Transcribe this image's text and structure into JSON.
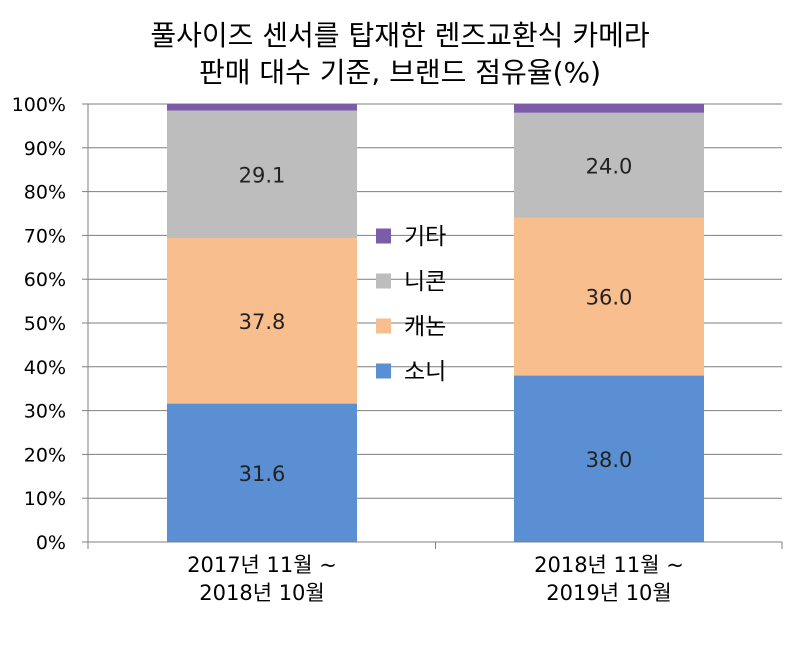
{
  "chart_data": {
    "type": "bar",
    "stacked": true,
    "percent": true,
    "title": [
      "풀사이즈 센서를 탑재한 렌즈교환식 카메라",
      "판매 대수 기준, 브랜드 점유율(%)"
    ],
    "categories": [
      [
        "2017년 11월 ~",
        "2018년 10월"
      ],
      [
        "2018년 11월 ~",
        "2019년 10월"
      ]
    ],
    "series": [
      {
        "name": "소니",
        "values": [
          31.6,
          38.0
        ],
        "labels": [
          "31.6",
          "38.0"
        ],
        "color": "#5B8FD4"
      },
      {
        "name": "캐논",
        "values": [
          37.8,
          36.0
        ],
        "labels": [
          "37.8",
          "36.0"
        ],
        "color": "#F8BE8E"
      },
      {
        "name": "니콘",
        "values": [
          29.1,
          24.0
        ],
        "labels": [
          "29.1",
          "24.0"
        ],
        "color": "#BDBDBD"
      },
      {
        "name": "기타",
        "values": [
          1.5,
          2.0
        ],
        "labels": [
          "",
          ""
        ],
        "color": "#7C5CA8"
      }
    ],
    "y_ticks": [
      "0%",
      "10%",
      "20%",
      "30%",
      "40%",
      "50%",
      "60%",
      "70%",
      "80%",
      "90%",
      "100%"
    ],
    "ylim": [
      0,
      100
    ],
    "grid": true,
    "legend_order": [
      "기타",
      "니콘",
      "캐논",
      "소니"
    ],
    "legend_position": "center"
  },
  "colors": {
    "grid": "#7f7f7f",
    "axis": "#7f7f7f"
  }
}
